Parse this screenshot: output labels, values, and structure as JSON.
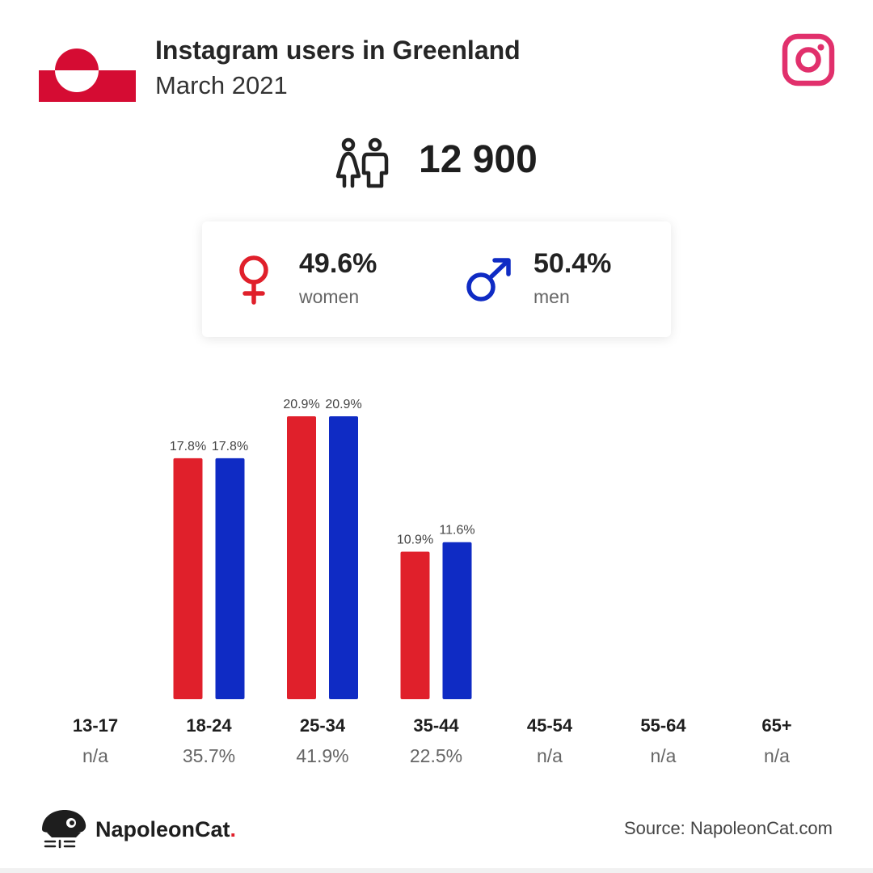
{
  "header": {
    "title": "Instagram users in Greenland",
    "subtitle": "March 2021"
  },
  "summary": {
    "total_users": "12 900"
  },
  "gender": {
    "women": {
      "value": "49.6%",
      "label": "women",
      "color": "#e0202b"
    },
    "men": {
      "value": "50.4%",
      "label": "men",
      "color": "#0f2bc4"
    }
  },
  "chart_data": {
    "type": "bar",
    "categories": [
      "13-17",
      "18-24",
      "25-34",
      "35-44",
      "45-54",
      "55-64",
      "65+"
    ],
    "category_totals": [
      "n/a",
      "35.7%",
      "41.9%",
      "22.5%",
      "n/a",
      "n/a",
      "n/a"
    ],
    "series": [
      {
        "key": "women",
        "color": "#e0202b",
        "values": [
          null,
          17.8,
          20.9,
          10.9,
          null,
          null,
          null
        ],
        "labels": [
          "",
          "17.8%",
          "20.9%",
          "10.9%",
          "",
          "",
          ""
        ]
      },
      {
        "key": "men",
        "color": "#0f2bc4",
        "values": [
          null,
          17.8,
          20.9,
          11.6,
          null,
          null,
          null
        ],
        "labels": [
          "",
          "17.8%",
          "20.9%",
          "11.6%",
          "",
          "",
          ""
        ]
      }
    ],
    "ylim": [
      0,
      20.9
    ],
    "grid": false,
    "legend": "none"
  },
  "footer": {
    "brand_name": "NapoleonCat",
    "brand_dot": ".",
    "source": "Source: NapoleonCat.com"
  },
  "icons": {
    "flag": "greenland-flag-icon",
    "instagram": "instagram-icon",
    "users": "users-icon",
    "female": "female-symbol-icon",
    "male": "male-symbol-icon",
    "brand": "napoleoncat-logo-icon"
  }
}
